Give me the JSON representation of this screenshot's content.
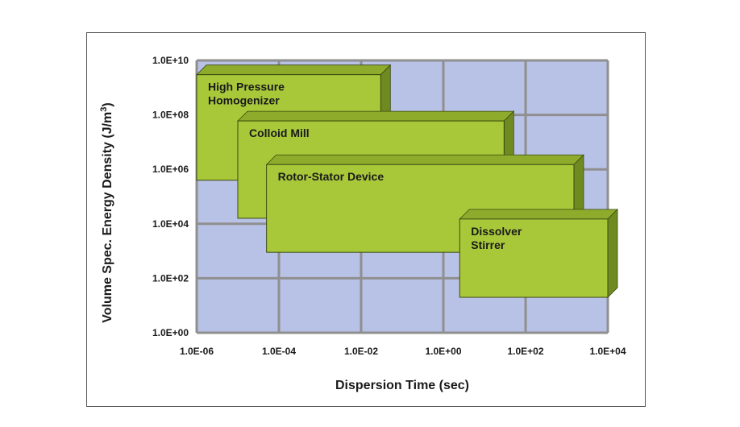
{
  "chart_data": {
    "type": "range-box",
    "title": "",
    "xlabel": "Dispersion Time (sec)",
    "ylabel": "Volume Spec. Energy Density (J/m3)",
    "x_scale": "log",
    "y_scale": "log",
    "xlim": [
      1e-06,
      10000.0
    ],
    "ylim": [
      1,
      10000000000.0
    ],
    "grid": true,
    "x_ticks": [
      1e-06,
      0.0001,
      0.01,
      1,
      100.0,
      10000.0
    ],
    "x_tick_labels": [
      "1.0E-06",
      "1.0E-04",
      "1.0E-02",
      "1.0E+00",
      "1.0E+02",
      "1.0E+04"
    ],
    "y_ticks": [
      1,
      100.0,
      10000.0,
      1000000.0,
      100000000.0,
      10000000000.0
    ],
    "y_tick_labels": [
      "1.0E+00",
      "1.0E+02",
      "1.0E+04",
      "1.0E+06",
      "1.0E+08",
      "1.0E+10"
    ],
    "series": [
      {
        "name": "High Pressure Homogenizer",
        "label_lines": [
          "High Pressure",
          "Homogenizer"
        ],
        "x_range": [
          1e-06,
          0.03
        ],
        "y_range": [
          400000.0,
          3000000000.0
        ]
      },
      {
        "name": "Colloid Mill",
        "label_lines": [
          "Colloid Mill"
        ],
        "x_range": [
          1e-05,
          30.0
        ],
        "y_range": [
          16000.0,
          60000000.0
        ]
      },
      {
        "name": "Rotor-Stator Device",
        "label_lines": [
          "Rotor-Stator Device"
        ],
        "x_range": [
          5e-05,
          1500.0
        ],
        "y_range": [
          900.0,
          1500000.0
        ]
      },
      {
        "name": "Dissolver Stirrer",
        "label_lines": [
          "Dissolver",
          "Stirrer"
        ],
        "x_range": [
          2.5,
          10000.0
        ],
        "y_range": [
          20.0,
          15000.0
        ]
      }
    ],
    "colors": {
      "plot_background": "#b8c1e6",
      "grid": "#8f8f8f",
      "box_face": "#a8c83a",
      "box_side": "#6f8a21",
      "box_top": "#8eab2c",
      "box_border": "#3a4a10"
    }
  }
}
